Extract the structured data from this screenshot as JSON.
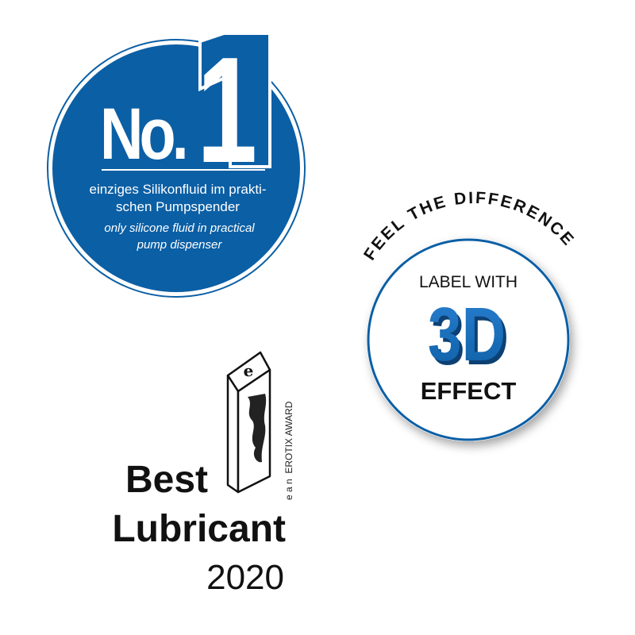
{
  "colors": {
    "brand_blue": "#0b5fa5",
    "text_dark": "#1a1a1a"
  },
  "no1_badge": {
    "number_prefix": "No.",
    "number": "1",
    "german_line1": "einziges Silikonfluid im prakti-",
    "german_line2": "schen Pumpspender",
    "english_line1": "only silicone fluid in practical",
    "english_line2": "pump dispenser"
  },
  "effect_badge": {
    "arc_text": "FEEL THE DIFFERENCE",
    "line1": "LABEL WITH",
    "big": "3D",
    "line3": "EFFECT"
  },
  "award": {
    "trophy_letter": "e",
    "vertical_text": "e a n  EROTIX AWARD",
    "title_line1": "Best",
    "title_line2": "Lubricant",
    "year": "2020"
  }
}
